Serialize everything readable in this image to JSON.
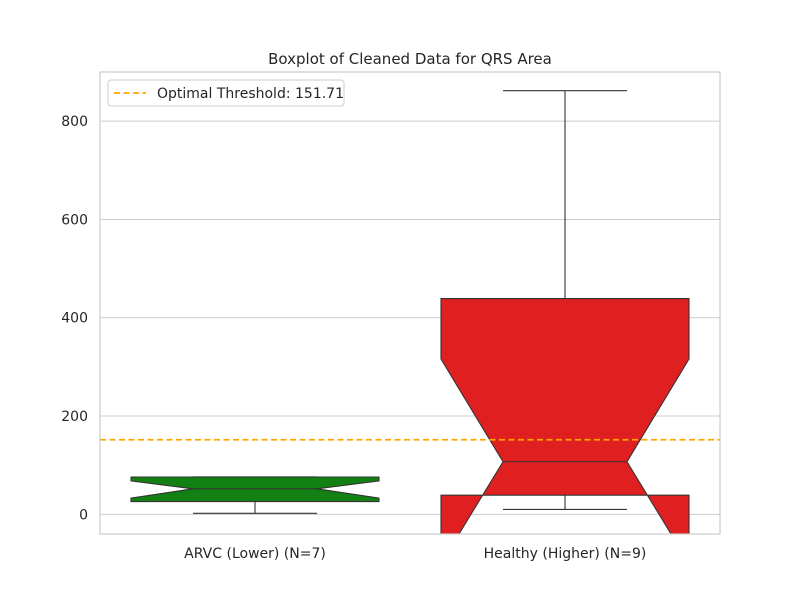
{
  "chart_data": {
    "type": "boxplot",
    "title": "Boxplot of Cleaned Data for QRS Area",
    "xlabel": "",
    "ylabel": "",
    "ylim": [
      -40,
      900
    ],
    "yticks": [
      0,
      200,
      400,
      600,
      800
    ],
    "grid": "horizontal",
    "categories": [
      "ARVC (Lower) (N=7)",
      "Healthy (Higher) (N=9)"
    ],
    "boxes": [
      {
        "category": "ARVC (Lower) (N=7)",
        "color": "#128012",
        "whisker_low": 2,
        "q1": 26,
        "notch_low": 33,
        "median": 52,
        "notch_high": 68,
        "q3": 76,
        "whisker_high": 76
      },
      {
        "category": "Healthy (Higher) (N=9)",
        "color": "#e02020",
        "whisker_low": 10,
        "q1": 39,
        "notch_low": -100,
        "median": 107,
        "notch_high": 316,
        "q3": 439,
        "whisker_high": 862
      }
    ],
    "threshold": {
      "value": 151.71,
      "label": "Optimal Threshold: 151.71",
      "color": "#ffa500"
    },
    "legend_position": "top-left"
  }
}
